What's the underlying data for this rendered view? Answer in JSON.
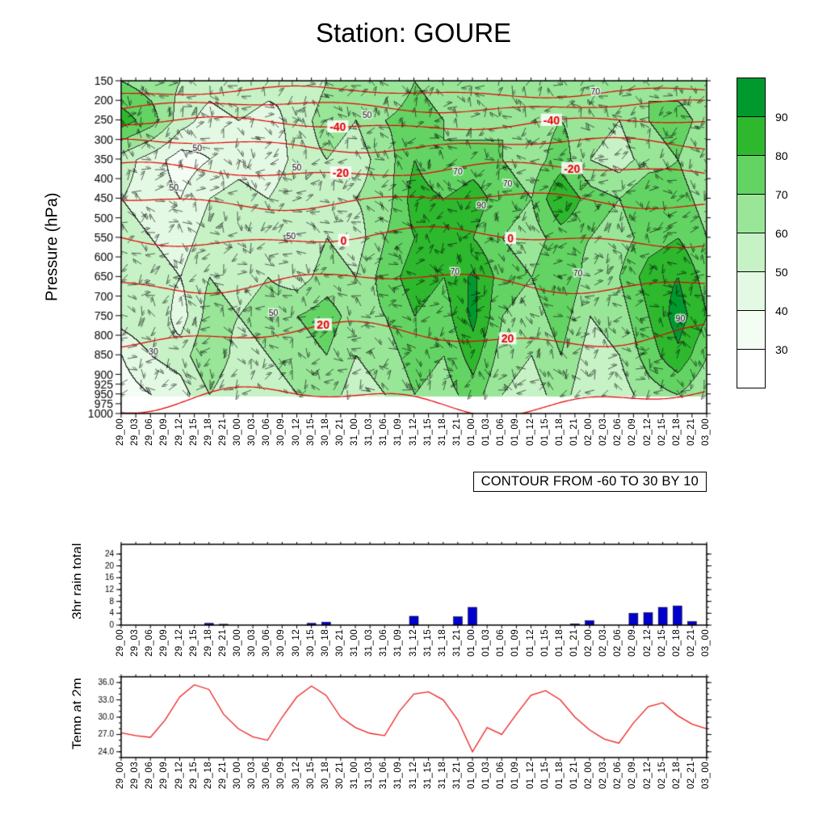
{
  "title": "Station: GOURE",
  "time_labels": [
    "29_00",
    "29_03",
    "29_06",
    "29_09",
    "29_12",
    "29_15",
    "29_18",
    "29_21",
    "30_00",
    "30_03",
    "30_06",
    "30_09",
    "30_12",
    "30_15",
    "30_18",
    "30_21",
    "31_00",
    "31_03",
    "31_06",
    "31_09",
    "31_12",
    "31_15",
    "31_18",
    "31_21",
    "01_00",
    "01_03",
    "01_06",
    "01_09",
    "01_12",
    "01_15",
    "01_18",
    "01_21",
    "02_00",
    "02_03",
    "02_06",
    "02_09",
    "02_12",
    "02_15",
    "02_18",
    "02_21",
    "03_00"
  ],
  "upper_panel": {
    "ylabel": "Pressure (hPa)",
    "pressure_ticks": [
      150,
      200,
      250,
      300,
      350,
      400,
      450,
      500,
      550,
      600,
      650,
      700,
      750,
      800,
      850,
      900,
      925,
      950,
      975,
      1000
    ],
    "caption": "CONTOUR FROM -60 TO 30 BY 10",
    "legend": {
      "values": [
        90,
        80,
        70,
        60,
        50,
        40,
        30
      ],
      "colors": [
        "#00992e",
        "#2eb82e",
        "#63d463",
        "#99e699",
        "#c6f2c6",
        "#e3f9e3",
        "#f4fdf4",
        "#ffffff"
      ]
    },
    "contour_color": "#e60000",
    "temp_contours": {
      "levels": [
        -60,
        -50,
        -40,
        -30,
        -20,
        -10,
        0,
        10,
        20,
        30
      ],
      "labels": [
        {
          "text": "-40",
          "level": -40,
          "fx": [
            0.37,
            0.735
          ]
        },
        {
          "text": "-20",
          "level": -20,
          "fx": [
            0.375,
            0.77
          ]
        },
        {
          "text": "0",
          "level": 0,
          "fx": [
            0.38,
            0.665
          ]
        },
        {
          "text": "20",
          "level": 20,
          "fx": [
            0.345,
            0.66
          ]
        }
      ]
    },
    "rh_inline_labels": [
      {
        "text": "50",
        "fx": 0.3,
        "p": 380
      },
      {
        "text": "50",
        "fx": 0.13,
        "p": 330
      },
      {
        "text": "50",
        "fx": 0.42,
        "p": 245
      },
      {
        "text": "70",
        "fx": 0.575,
        "p": 390
      },
      {
        "text": "70",
        "fx": 0.66,
        "p": 420
      },
      {
        "text": "90",
        "fx": 0.615,
        "p": 475
      },
      {
        "text": "70",
        "fx": 0.57,
        "p": 645
      },
      {
        "text": "70",
        "fx": 0.78,
        "p": 650
      },
      {
        "text": "50",
        "fx": 0.29,
        "p": 555
      },
      {
        "text": "50",
        "fx": 0.26,
        "p": 750
      },
      {
        "text": "70",
        "fx": 0.81,
        "p": 185
      },
      {
        "text": "90",
        "fx": 0.955,
        "p": 765
      },
      {
        "text": "30",
        "fx": 0.055,
        "p": 850
      },
      {
        "text": "50",
        "fx": 0.09,
        "p": 430
      }
    ]
  },
  "rain_panel": {
    "ylabel": "3hr rain total"
  },
  "temp_panel": {
    "ylabel": "Temp at 2m"
  },
  "chart_data": [
    {
      "type": "heatmap",
      "name": "relative-humidity-time-pressure-section",
      "x": [
        "29_00",
        "29_06",
        "29_12",
        "29_18",
        "30_00",
        "30_06",
        "30_12",
        "30_18",
        "31_00",
        "31_06",
        "31_12",
        "31_18",
        "01_00",
        "01_06",
        "01_12",
        "01_18",
        "02_00",
        "02_06",
        "02_12",
        "02_18",
        "03_00"
      ],
      "y_pressure_hpa": [
        150,
        250,
        350,
        450,
        550,
        650,
        750,
        850,
        950
      ],
      "values": [
        [
          70,
          65,
          60,
          55,
          60,
          55,
          50,
          60,
          65,
          60,
          70,
          65,
          60,
          65,
          60,
          65,
          60,
          65,
          70,
          65,
          60
        ],
        [
          85,
          75,
          55,
          45,
          50,
          45,
          55,
          65,
          60,
          70,
          75,
          70,
          65,
          70,
          65,
          70,
          65,
          60,
          70,
          75,
          65
        ],
        [
          55,
          45,
          35,
          40,
          45,
          40,
          55,
          60,
          55,
          65,
          80,
          70,
          75,
          70,
          65,
          75,
          60,
          55,
          65,
          70,
          60
        ],
        [
          50,
          45,
          40,
          50,
          55,
          50,
          60,
          55,
          60,
          65,
          85,
          80,
          85,
          75,
          70,
          90,
          75,
          70,
          80,
          75,
          65
        ],
        [
          55,
          50,
          45,
          55,
          60,
          55,
          50,
          60,
          55,
          70,
          80,
          85,
          80,
          70,
          65,
          75,
          70,
          65,
          75,
          80,
          70
        ],
        [
          60,
          55,
          50,
          60,
          55,
          60,
          55,
          65,
          60,
          75,
          85,
          80,
          92,
          75,
          70,
          80,
          65,
          70,
          85,
          90,
          75
        ],
        [
          55,
          60,
          45,
          65,
          60,
          65,
          70,
          75,
          65,
          70,
          80,
          75,
          93,
          70,
          65,
          75,
          60,
          65,
          80,
          95,
          80
        ],
        [
          40,
          50,
          55,
          70,
          55,
          60,
          65,
          70,
          60,
          65,
          75,
          70,
          85,
          65,
          60,
          70,
          55,
          60,
          75,
          88,
          70
        ],
        [
          35,
          40,
          45,
          60,
          50,
          55,
          60,
          65,
          55,
          60,
          70,
          65,
          75,
          60,
          55,
          65,
          50,
          55,
          65,
          70,
          60
        ]
      ],
      "shading_levels": [
        30,
        40,
        50,
        60,
        70,
        80,
        90
      ],
      "overlay": {
        "temperature_contours_c": [
          -60,
          -50,
          -40,
          -30,
          -20,
          -10,
          0,
          10,
          20,
          30
        ],
        "labeled_contours": [
          -40,
          -20,
          0,
          20
        ],
        "caption": "CONTOUR FROM -60 TO 30 BY 10",
        "wind_barbs": true
      }
    },
    {
      "type": "bar",
      "title": "3hr rain total",
      "categories": [
        "29_00",
        "29_03",
        "29_06",
        "29_09",
        "29_12",
        "29_15",
        "29_18",
        "29_21",
        "30_00",
        "30_03",
        "30_06",
        "30_09",
        "30_12",
        "30_15",
        "30_18",
        "30_21",
        "31_00",
        "31_03",
        "31_06",
        "31_09",
        "31_12",
        "31_15",
        "31_18",
        "31_21",
        "01_00",
        "01_03",
        "01_06",
        "01_09",
        "01_12",
        "01_15",
        "01_18",
        "01_21",
        "02_00",
        "02_03",
        "02_06",
        "02_09",
        "02_12",
        "02_15",
        "02_18",
        "02_21",
        "03_00"
      ],
      "values": [
        0,
        0,
        0,
        0,
        0,
        0,
        0.6,
        0.3,
        0,
        0,
        0,
        0,
        0,
        0.6,
        1.0,
        0,
        0,
        0,
        0,
        0,
        3.0,
        0,
        0,
        2.8,
        6.0,
        0,
        0,
        0,
        0,
        0,
        0,
        0.4,
        1.5,
        0,
        0,
        4.0,
        4.2,
        6.0,
        6.5,
        1.2,
        0
      ],
      "ylim": [
        0,
        24
      ],
      "yticks": [
        0,
        4,
        8,
        12,
        16,
        20,
        24
      ],
      "color": "#0000cc"
    },
    {
      "type": "line",
      "title": "Temp at 2m",
      "categories": [
        "29_00",
        "29_03",
        "29_06",
        "29_09",
        "29_12",
        "29_15",
        "29_18",
        "29_21",
        "30_00",
        "30_03",
        "30_06",
        "30_09",
        "30_12",
        "30_15",
        "30_18",
        "30_21",
        "31_00",
        "31_03",
        "31_06",
        "31_09",
        "31_12",
        "31_15",
        "31_18",
        "31_21",
        "01_00",
        "01_03",
        "01_06",
        "01_09",
        "01_12",
        "01_15",
        "01_18",
        "01_21",
        "02_00",
        "02_03",
        "02_06",
        "02_09",
        "02_12",
        "02_15",
        "02_18",
        "02_21",
        "03_00"
      ],
      "values": [
        27.3,
        26.8,
        26.5,
        29.5,
        33.5,
        35.6,
        34.8,
        30.5,
        28.0,
        26.6,
        26.0,
        30.0,
        33.5,
        35.4,
        33.8,
        30.0,
        28.2,
        27.2,
        26.8,
        31.0,
        34.0,
        34.4,
        33.0,
        29.5,
        24.0,
        28.2,
        27.0,
        30.5,
        33.8,
        34.6,
        33.0,
        30.0,
        27.8,
        26.2,
        25.5,
        29.0,
        31.8,
        32.5,
        30.3,
        28.8,
        28.0
      ],
      "ylim": [
        24,
        36
      ],
      "yticks": [
        "24.0",
        "27.0",
        "30.0",
        "33.0",
        "36.0"
      ],
      "color": "#ee2222"
    }
  ]
}
